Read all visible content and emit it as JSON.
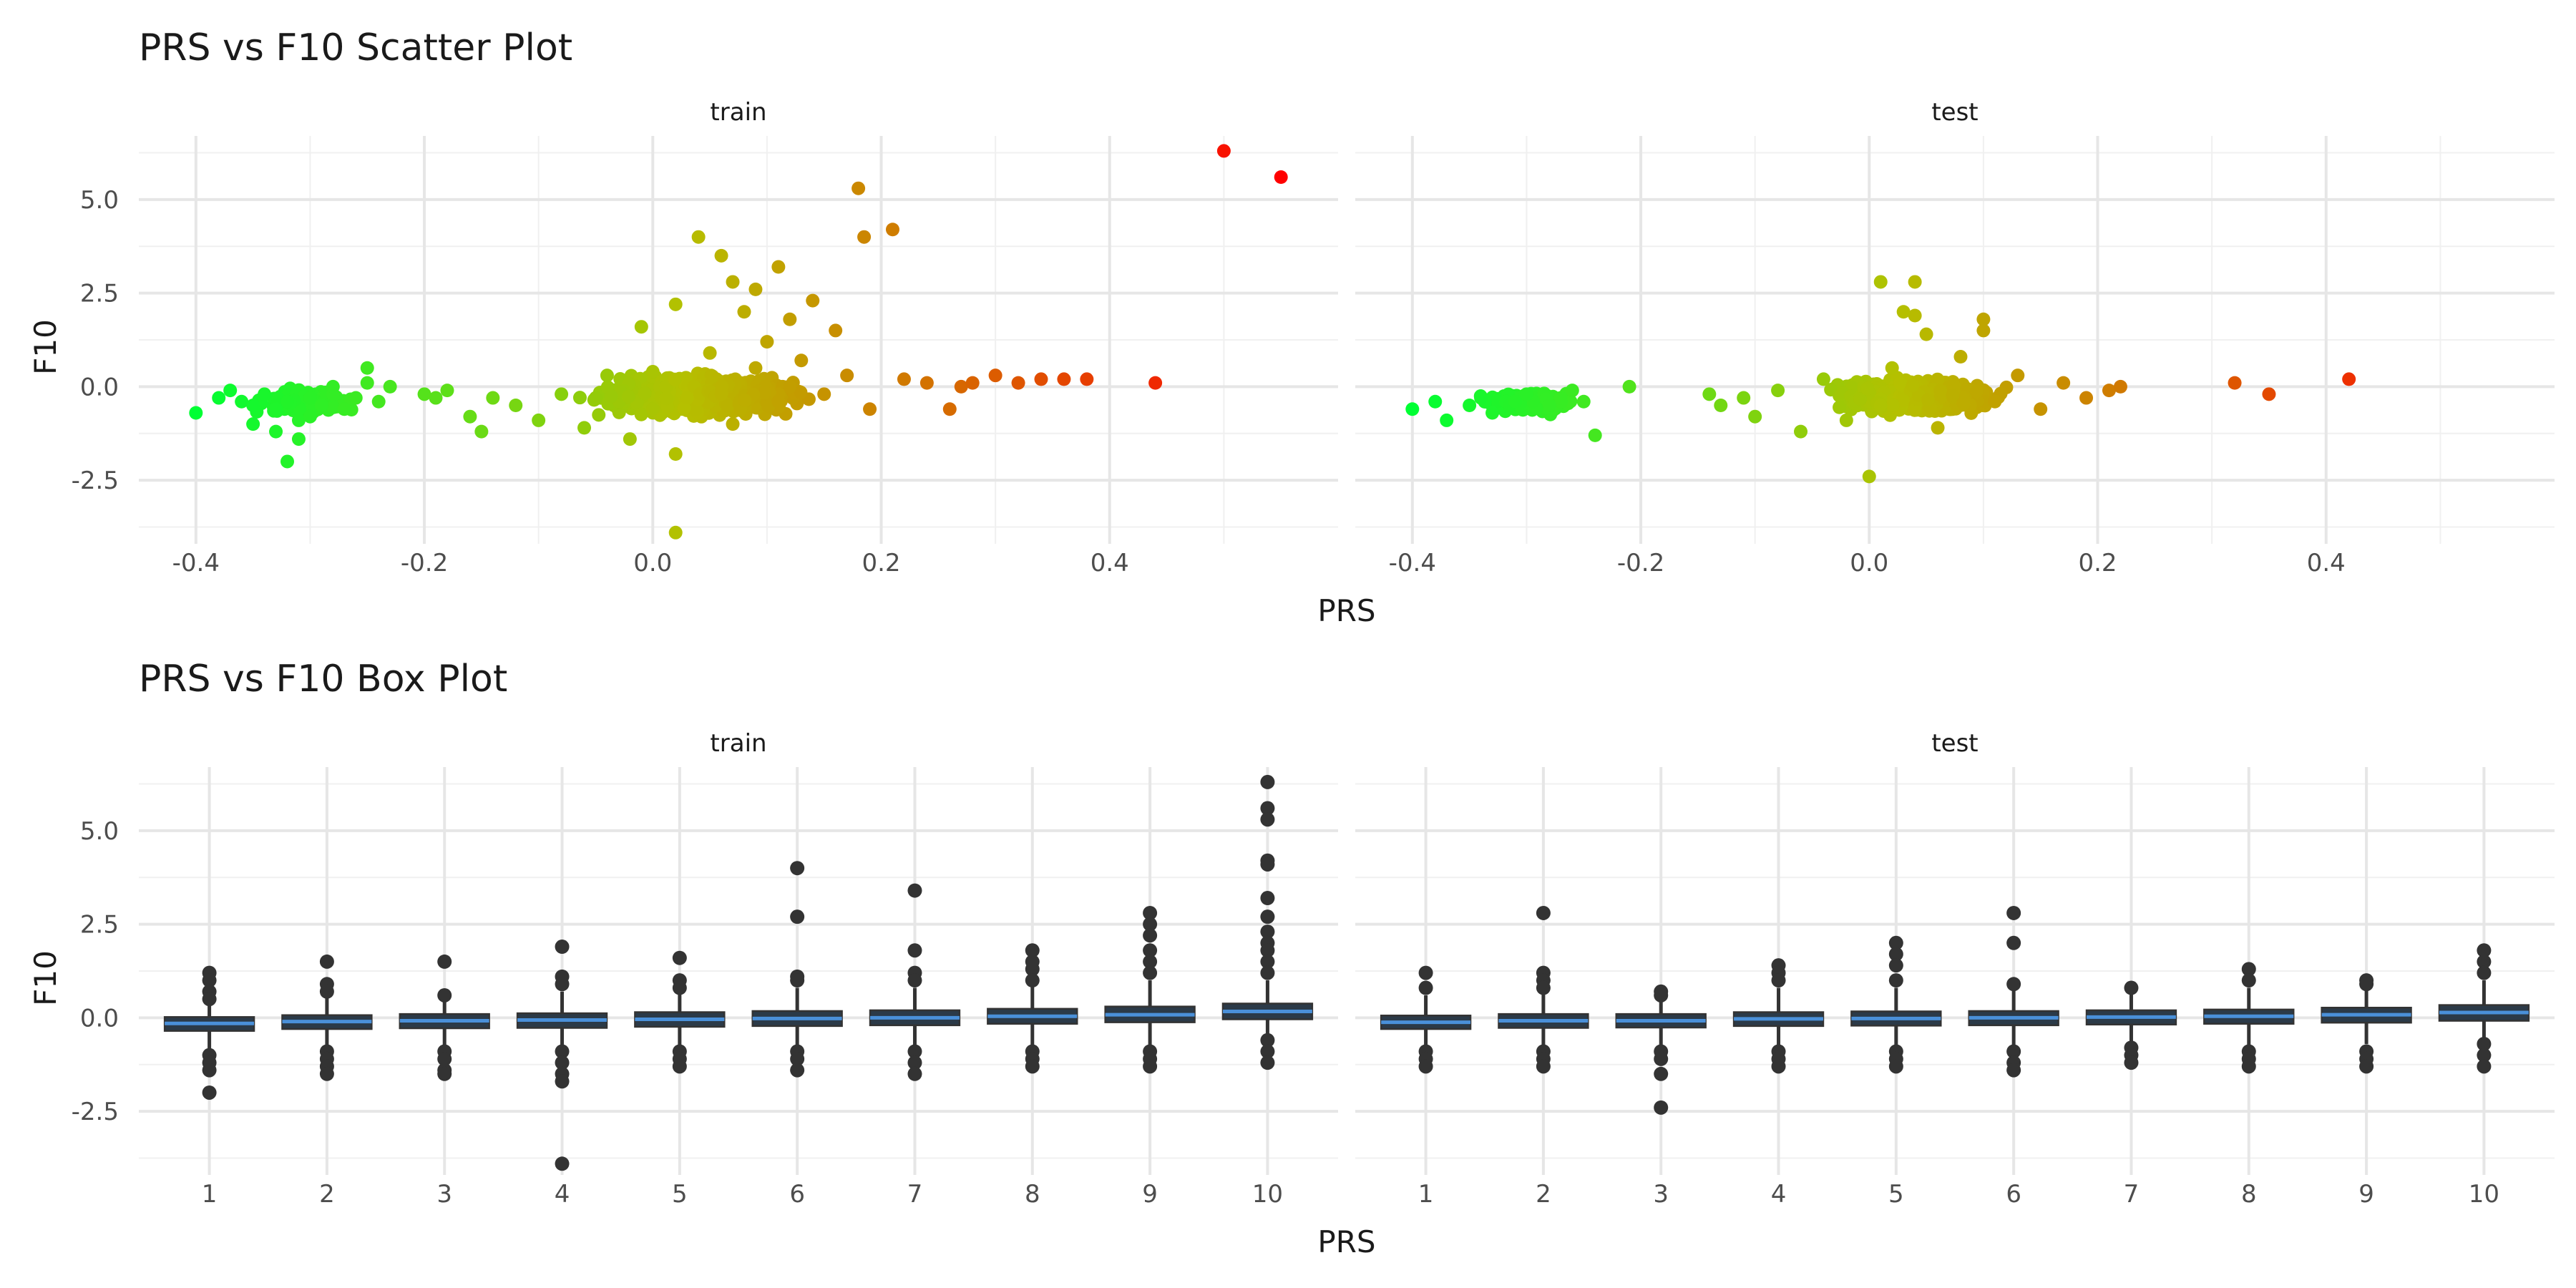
{
  "chart_data": [
    {
      "type": "scatter",
      "title": "PRS vs F10 Scatter Plot",
      "xlabel": "PRS",
      "ylabel": "F10",
      "xlim": [
        -0.45,
        0.6
      ],
      "ylim": [
        -4.2,
        6.7
      ],
      "x_ticks": [
        -0.4,
        -0.2,
        0.0,
        0.2,
        0.4
      ],
      "x_tick_labels": [
        "-0.4",
        "-0.2",
        "0.0",
        "0.2",
        "0.4"
      ],
      "y_ticks": [
        -2.5,
        0.0,
        2.5,
        5.0
      ],
      "y_tick_labels": [
        "-2.5",
        "0.0",
        "2.5",
        "5.0"
      ],
      "color_scale": {
        "low": "#00ff33",
        "mid": "#b5c000",
        "high": "#ff0000",
        "domain": [
          -0.4,
          0.55
        ]
      },
      "grid": true,
      "panels": [
        {
          "name": "train",
          "points": [
            [
              -0.4,
              -0.7
            ],
            [
              -0.38,
              -0.3
            ],
            [
              -0.36,
              -0.4
            ],
            [
              -0.35,
              -0.5
            ],
            [
              -0.34,
              -0.2
            ],
            [
              -0.33,
              -0.6
            ],
            [
              -0.32,
              -0.4
            ],
            [
              -0.31,
              -0.9
            ],
            [
              -0.3,
              -0.3
            ],
            [
              -0.29,
              -0.5
            ],
            [
              -0.28,
              -0.2
            ],
            [
              -0.27,
              -0.6
            ],
            [
              -0.26,
              -0.3
            ],
            [
              -0.25,
              0.1
            ],
            [
              -0.24,
              -0.4
            ],
            [
              -0.23,
              0.0
            ],
            [
              -0.35,
              -1.0
            ],
            [
              -0.33,
              -1.2
            ],
            [
              -0.32,
              -2.0
            ],
            [
              -0.31,
              -1.4
            ],
            [
              -0.3,
              -0.8
            ],
            [
              -0.25,
              0.5
            ],
            [
              -0.28,
              0.0
            ],
            [
              -0.37,
              -0.1
            ],
            [
              -0.2,
              -0.2
            ],
            [
              -0.19,
              -0.3
            ],
            [
              -0.18,
              -0.1
            ],
            [
              -0.16,
              -0.8
            ],
            [
              -0.15,
              -1.2
            ],
            [
              -0.14,
              -0.3
            ],
            [
              -0.12,
              -0.5
            ],
            [
              -0.1,
              -0.9
            ],
            [
              -0.08,
              -0.2
            ],
            [
              -0.06,
              -1.1
            ],
            [
              -0.04,
              0.3
            ],
            [
              -0.02,
              -1.4
            ],
            [
              0.0,
              -0.6
            ],
            [
              0.02,
              -1.8
            ],
            [
              0.03,
              -0.3
            ],
            [
              0.05,
              0.9
            ],
            [
              0.07,
              -1.0
            ],
            [
              0.09,
              0.5
            ],
            [
              0.11,
              -0.4
            ],
            [
              0.13,
              0.7
            ],
            [
              0.15,
              -0.2
            ],
            [
              0.17,
              0.3
            ],
            [
              0.19,
              -0.6
            ],
            [
              0.22,
              0.2
            ],
            [
              0.24,
              0.1
            ],
            [
              0.26,
              -0.6
            ],
            [
              0.27,
              0.0
            ],
            [
              0.28,
              0.1
            ],
            [
              0.3,
              0.3
            ],
            [
              0.32,
              0.1
            ],
            [
              0.34,
              0.2
            ],
            [
              0.36,
              0.2
            ],
            [
              0.38,
              0.2
            ],
            [
              0.44,
              0.1
            ],
            [
              0.5,
              6.3
            ],
            [
              0.55,
              5.6
            ],
            [
              0.02,
              -3.9
            ],
            [
              0.18,
              5.3
            ],
            [
              0.185,
              4.0
            ],
            [
              0.21,
              4.2
            ],
            [
              0.04,
              4.0
            ],
            [
              0.06,
              3.5
            ],
            [
              0.11,
              3.2
            ],
            [
              0.09,
              2.6
            ],
            [
              0.14,
              2.3
            ],
            [
              0.07,
              2.8
            ],
            [
              0.02,
              2.2
            ],
            [
              0.12,
              1.8
            ],
            [
              0.16,
              1.5
            ],
            [
              -0.01,
              1.6
            ],
            [
              0.08,
              2.0
            ],
            [
              0.1,
              1.2
            ],
            [
              -0.05,
              -0.3
            ],
            [
              0.0,
              0.4
            ],
            [
              0.06,
              -0.2
            ],
            [
              0.12,
              0.0
            ]
          ],
          "cluster_hint": "dense clusters around (-0.31,-0.4) and (0.05,-0.2)"
        },
        {
          "name": "test",
          "points": [
            [
              -0.4,
              -0.6
            ],
            [
              -0.38,
              -0.4
            ],
            [
              -0.37,
              -0.9
            ],
            [
              -0.35,
              -0.5
            ],
            [
              -0.34,
              -0.3
            ],
            [
              -0.33,
              -0.7
            ],
            [
              -0.31,
              -0.4
            ],
            [
              -0.3,
              -0.2
            ],
            [
              -0.28,
              -0.5
            ],
            [
              -0.27,
              -0.3
            ],
            [
              -0.26,
              -0.1
            ],
            [
              -0.25,
              -0.4
            ],
            [
              -0.24,
              -1.3
            ],
            [
              -0.21,
              0.0
            ],
            [
              -0.14,
              -0.2
            ],
            [
              -0.13,
              -0.5
            ],
            [
              -0.11,
              -0.3
            ],
            [
              -0.1,
              -0.8
            ],
            [
              -0.08,
              -0.1
            ],
            [
              -0.06,
              -1.2
            ],
            [
              -0.04,
              0.2
            ],
            [
              -0.02,
              -0.9
            ],
            [
              0.0,
              -2.4
            ],
            [
              0.01,
              -0.5
            ],
            [
              0.02,
              0.5
            ],
            [
              0.04,
              1.9
            ],
            [
              0.05,
              1.4
            ],
            [
              0.06,
              -1.1
            ],
            [
              0.08,
              0.8
            ],
            [
              0.1,
              1.8
            ],
            [
              0.11,
              -0.4
            ],
            [
              0.13,
              0.3
            ],
            [
              0.15,
              -0.6
            ],
            [
              0.17,
              0.1
            ],
            [
              0.19,
              -0.3
            ],
            [
              0.21,
              -0.1
            ],
            [
              0.22,
              0.0
            ],
            [
              0.32,
              0.1
            ],
            [
              0.35,
              -0.2
            ],
            [
              0.42,
              0.2
            ],
            [
              0.01,
              2.8
            ],
            [
              0.04,
              2.8
            ],
            [
              0.03,
              2.0
            ],
            [
              0.1,
              1.5
            ]
          ],
          "cluster_hint": "dense clusters around (-0.3,-0.4) and (0.05,-0.2)"
        }
      ]
    },
    {
      "type": "box",
      "title": "PRS vs F10 Box Plot",
      "xlabel": "PRS",
      "ylabel": "F10",
      "categories": [
        "1",
        "2",
        "3",
        "4",
        "5",
        "6",
        "7",
        "8",
        "9",
        "10"
      ],
      "ylim": [
        -4.2,
        6.7
      ],
      "y_ticks": [
        -2.5,
        0.0,
        2.5,
        5.0
      ],
      "y_tick_labels": [
        "-2.5",
        "0.0",
        "2.5",
        "5.0"
      ],
      "box_fill": "#2b3a48",
      "median_color": "#4a90d9",
      "grid": true,
      "panels": [
        {
          "name": "train",
          "boxes": [
            {
              "q1": -0.35,
              "median": -0.15,
              "q3": 0.02,
              "wlo": -0.9,
              "whi": 0.5,
              "outliers": [
                1.2,
                1.0,
                0.7,
                0.5,
                -1.0,
                -1.2,
                -1.4,
                -2.0
              ]
            },
            {
              "q1": -0.3,
              "median": -0.1,
              "q3": 0.07,
              "wlo": -0.8,
              "whi": 0.6,
              "outliers": [
                1.5,
                0.9,
                0.7,
                -0.9,
                -1.1,
                -1.3,
                -1.5
              ]
            },
            {
              "q1": -0.28,
              "median": -0.08,
              "q3": 0.1,
              "wlo": -0.8,
              "whi": 0.6,
              "outliers": [
                1.5,
                0.6,
                -0.9,
                -1.1,
                -1.4,
                -1.5
              ]
            },
            {
              "q1": -0.27,
              "median": -0.06,
              "q3": 0.12,
              "wlo": -0.8,
              "whi": 0.7,
              "outliers": [
                1.9,
                1.1,
                0.9,
                -0.9,
                -1.2,
                -1.5,
                -1.7,
                -3.9
              ]
            },
            {
              "q1": -0.24,
              "median": -0.04,
              "q3": 0.15,
              "wlo": -0.8,
              "whi": 0.7,
              "outliers": [
                1.6,
                1.0,
                0.8,
                -0.9,
                -1.1,
                -1.3
              ]
            },
            {
              "q1": -0.22,
              "median": -0.02,
              "q3": 0.18,
              "wlo": -0.8,
              "whi": 0.8,
              "outliers": [
                4.0,
                2.7,
                1.1,
                1.0,
                -0.9,
                -1.1,
                -1.4
              ]
            },
            {
              "q1": -0.2,
              "median": 0.0,
              "q3": 0.2,
              "wlo": -0.8,
              "whi": 0.8,
              "outliers": [
                3.4,
                1.8,
                1.2,
                1.0,
                -0.9,
                -1.2,
                -1.5
              ]
            },
            {
              "q1": -0.16,
              "median": 0.04,
              "q3": 0.24,
              "wlo": -0.8,
              "whi": 0.9,
              "outliers": [
                1.8,
                1.5,
                1.3,
                1.0,
                -0.9,
                -1.1,
                -1.3
              ]
            },
            {
              "q1": -0.12,
              "median": 0.08,
              "q3": 0.3,
              "wlo": -0.8,
              "whi": 1.0,
              "outliers": [
                2.8,
                2.5,
                2.2,
                1.8,
                1.5,
                1.2,
                -0.9,
                -1.1,
                -1.3
              ]
            },
            {
              "q1": -0.04,
              "median": 0.17,
              "q3": 0.38,
              "wlo": -0.7,
              "whi": 1.0,
              "outliers": [
                6.3,
                5.6,
                5.3,
                4.2,
                4.1,
                3.2,
                2.7,
                2.3,
                2.0,
                1.8,
                1.5,
                1.2,
                -0.6,
                -0.9,
                -1.2
              ]
            }
          ]
        },
        {
          "name": "test",
          "boxes": [
            {
              "q1": -0.3,
              "median": -0.12,
              "q3": 0.06,
              "wlo": -0.8,
              "whi": 0.6,
              "outliers": [
                1.2,
                0.8,
                -0.9,
                -1.1,
                -1.3
              ]
            },
            {
              "q1": -0.27,
              "median": -0.08,
              "q3": 0.1,
              "wlo": -0.8,
              "whi": 0.7,
              "outliers": [
                2.8,
                1.2,
                1.0,
                0.8,
                -0.9,
                -1.1,
                -1.3
              ]
            },
            {
              "q1": -0.26,
              "median": -0.08,
              "q3": 0.1,
              "wlo": -0.8,
              "whi": 0.5,
              "outliers": [
                0.7,
                0.6,
                -0.9,
                -1.1,
                -1.5,
                -2.4
              ]
            },
            {
              "q1": -0.22,
              "median": -0.03,
              "q3": 0.15,
              "wlo": -0.8,
              "whi": 0.8,
              "outliers": [
                1.4,
                1.2,
                1.0,
                -0.9,
                -1.1,
                -1.3
              ]
            },
            {
              "q1": -0.21,
              "median": -0.02,
              "q3": 0.17,
              "wlo": -0.8,
              "whi": 0.8,
              "outliers": [
                2.0,
                1.7,
                1.4,
                1.0,
                -0.9,
                -1.1,
                -1.3
              ]
            },
            {
              "q1": -0.2,
              "median": 0.0,
              "q3": 0.18,
              "wlo": -0.8,
              "whi": 0.8,
              "outliers": [
                2.8,
                2.0,
                0.9,
                -0.9,
                -1.2,
                -1.4
              ]
            },
            {
              "q1": -0.18,
              "median": 0.02,
              "q3": 0.2,
              "wlo": -0.7,
              "whi": 0.7,
              "outliers": [
                0.8,
                -0.8,
                -1.0,
                -1.2
              ]
            },
            {
              "q1": -0.16,
              "median": 0.04,
              "q3": 0.22,
              "wlo": -0.8,
              "whi": 0.8,
              "outliers": [
                1.3,
                1.0,
                -0.9,
                -1.1,
                -1.3
              ]
            },
            {
              "q1": -0.13,
              "median": 0.08,
              "q3": 0.27,
              "wlo": -0.7,
              "whi": 0.8,
              "outliers": [
                1.0,
                0.9,
                -0.9,
                -1.1,
                -1.3
              ]
            },
            {
              "q1": -0.08,
              "median": 0.14,
              "q3": 0.34,
              "wlo": -0.6,
              "whi": 1.0,
              "outliers": [
                1.8,
                1.5,
                1.2,
                -0.7,
                -1.0,
                -1.3
              ]
            }
          ]
        }
      ]
    }
  ]
}
